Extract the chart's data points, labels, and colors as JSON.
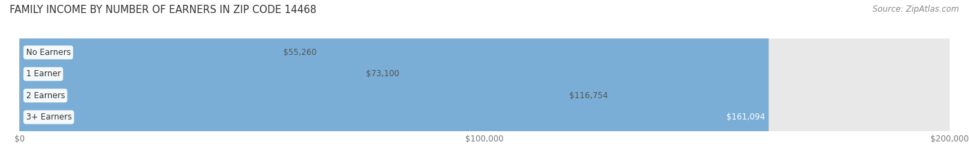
{
  "title": "FAMILY INCOME BY NUMBER OF EARNERS IN ZIP CODE 14468",
  "source": "Source: ZipAtlas.com",
  "categories": [
    "No Earners",
    "1 Earner",
    "2 Earners",
    "3+ Earners"
  ],
  "values": [
    55260,
    73100,
    116754,
    161094
  ],
  "labels": [
    "$55,260",
    "$73,100",
    "$116,754",
    "$161,094"
  ],
  "bar_colors": [
    "#f4a0b0",
    "#f5c98a",
    "#e08a8a",
    "#7aaed6"
  ],
  "track_bg_color": "#e8e8e8",
  "xlim": [
    0,
    200000
  ],
  "xticks": [
    0,
    100000,
    200000
  ],
  "xtick_labels": [
    "$0",
    "$100,000",
    "$200,000"
  ],
  "title_fontsize": 10.5,
  "source_fontsize": 8.5,
  "bar_label_fontsize": 8.5,
  "category_fontsize": 8.5,
  "tick_fontsize": 8.5,
  "fig_bg_color": "#ffffff",
  "bar_height": 0.55
}
